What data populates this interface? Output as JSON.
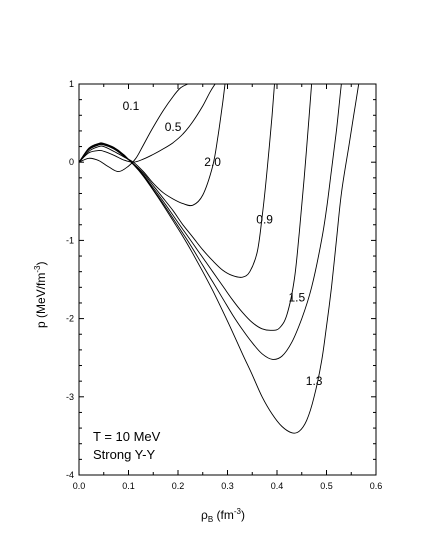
{
  "chart_data": {
    "type": "line",
    "xlabel_base": "ρ",
    "xlabel_sub": "B",
    "xlabel_unit": " (fm",
    "xlabel_exp": "-3",
    "xlabel_close": ")",
    "ylabel_main": "p (MeV/fm",
    "ylabel_exp": "-3",
    "ylabel_close": ")",
    "xlim": [
      0.0,
      0.6
    ],
    "ylim": [
      -4,
      1
    ],
    "x_ticks": [
      "0.0",
      "0.1",
      "0.2",
      "0.3",
      "0.4",
      "0.5",
      "0.6"
    ],
    "y_ticks": [
      "1",
      "0",
      "-1",
      "-2",
      "-3",
      "-4"
    ],
    "annotations": [
      "T = 10 MeV",
      "Strong Y-Y"
    ],
    "series": [
      {
        "name": "0.1",
        "x": [
          0,
          0.02,
          0.04,
          0.06,
          0.08,
          0.1,
          0.115,
          0.13,
          0.15,
          0.17,
          0.19,
          0.205,
          0.22
        ],
        "y": [
          0,
          0.05,
          0.02,
          -0.06,
          -0.12,
          -0.05,
          0.05,
          0.22,
          0.45,
          0.66,
          0.84,
          0.95,
          1.0
        ]
      },
      {
        "name": "0.5",
        "x": [
          0,
          0.02,
          0.04,
          0.05,
          0.07,
          0.09,
          0.11,
          0.13,
          0.15,
          0.17,
          0.19,
          0.21,
          0.23,
          0.25,
          0.265,
          0.275
        ],
        "y": [
          0,
          0.12,
          0.15,
          0.14,
          0.09,
          0.03,
          0.0,
          0.04,
          0.1,
          0.17,
          0.25,
          0.36,
          0.52,
          0.72,
          0.9,
          1.0
        ]
      },
      {
        "name": "2.0",
        "x": [
          0,
          0.02,
          0.04,
          0.05,
          0.07,
          0.09,
          0.11,
          0.13,
          0.15,
          0.17,
          0.19,
          0.21,
          0.23,
          0.25,
          0.27,
          0.28,
          0.29,
          0.295
        ],
        "y": [
          0,
          0.14,
          0.2,
          0.2,
          0.14,
          0.07,
          0.0,
          -0.12,
          -0.27,
          -0.39,
          -0.47,
          -0.53,
          -0.55,
          -0.42,
          -0.05,
          0.3,
          0.75,
          1.0
        ]
      },
      {
        "name": "0.9",
        "x": [
          0,
          0.02,
          0.04,
          0.05,
          0.07,
          0.09,
          0.11,
          0.13,
          0.15,
          0.17,
          0.19,
          0.21,
          0.23,
          0.25,
          0.27,
          0.29,
          0.31,
          0.33,
          0.345,
          0.36,
          0.37,
          0.38,
          0.39,
          0.395
        ],
        "y": [
          0,
          0.16,
          0.22,
          0.22,
          0.17,
          0.08,
          -0.02,
          -0.14,
          -0.3,
          -0.46,
          -0.62,
          -0.8,
          -0.96,
          -1.12,
          -1.26,
          -1.38,
          -1.45,
          -1.47,
          -1.4,
          -1.15,
          -0.7,
          -0.1,
          0.6,
          1.0
        ]
      },
      {
        "name": "1.5",
        "x": [
          0,
          0.02,
          0.04,
          0.05,
          0.07,
          0.09,
          0.11,
          0.13,
          0.15,
          0.17,
          0.19,
          0.21,
          0.23,
          0.25,
          0.27,
          0.29,
          0.31,
          0.33,
          0.35,
          0.37,
          0.39,
          0.405,
          0.42,
          0.435,
          0.445,
          0.455,
          0.465,
          0.47
        ],
        "y": [
          0,
          0.17,
          0.23,
          0.23,
          0.18,
          0.09,
          -0.02,
          -0.16,
          -0.33,
          -0.5,
          -0.68,
          -0.86,
          -1.04,
          -1.22,
          -1.4,
          -1.58,
          -1.76,
          -1.92,
          -2.05,
          -2.13,
          -2.15,
          -2.12,
          -1.95,
          -1.5,
          -0.9,
          -0.2,
          0.6,
          1.0
        ]
      },
      {
        "name": "1.3",
        "x": [
          0,
          0.02,
          0.04,
          0.05,
          0.07,
          0.09,
          0.11,
          0.13,
          0.15,
          0.17,
          0.19,
          0.21,
          0.23,
          0.25,
          0.27,
          0.29,
          0.31,
          0.33,
          0.35,
          0.37,
          0.39,
          0.41,
          0.43,
          0.445,
          0.46,
          0.475,
          0.49,
          0.5,
          0.51,
          0.52,
          0.53,
          0.545,
          0.555,
          0.565
        ],
        "y": [
          0,
          0.18,
          0.24,
          0.24,
          0.19,
          0.1,
          -0.03,
          -0.18,
          -0.36,
          -0.55,
          -0.75,
          -0.95,
          -1.17,
          -1.4,
          -1.64,
          -1.9,
          -2.17,
          -2.45,
          -2.72,
          -3.0,
          -3.22,
          -3.38,
          -3.46,
          -3.44,
          -3.3,
          -3.0,
          -2.55,
          -2.1,
          -1.6,
          -1.0,
          -0.4,
          0.2,
          0.6,
          1.0
        ]
      },
      {
        "name": "",
        "x": [
          0,
          0.02,
          0.04,
          0.05,
          0.07,
          0.09,
          0.11,
          0.13,
          0.15,
          0.17,
          0.19,
          0.21,
          0.23,
          0.25,
          0.27,
          0.29,
          0.31,
          0.33,
          0.35,
          0.37,
          0.39,
          0.41,
          0.43,
          0.45,
          0.47,
          0.49,
          0.5,
          0.51,
          0.52,
          0.525,
          0.53
        ],
        "y": [
          0,
          0.17,
          0.23,
          0.23,
          0.18,
          0.09,
          -0.03,
          -0.17,
          -0.35,
          -0.53,
          -0.72,
          -0.91,
          -1.11,
          -1.32,
          -1.53,
          -1.74,
          -1.95,
          -2.14,
          -2.31,
          -2.45,
          -2.52,
          -2.48,
          -2.3,
          -2.0,
          -1.6,
          -1.0,
          -0.6,
          -0.1,
          0.4,
          0.7,
          1.0
        ]
      }
    ],
    "label_positions": [
      {
        "text": "0.1",
        "x": 0.105,
        "y": 0.72
      },
      {
        "text": "0.5",
        "x": 0.19,
        "y": 0.45
      },
      {
        "text": "2.0",
        "x": 0.27,
        "y": 0.0
      },
      {
        "text": "0.9",
        "x": 0.375,
        "y": -0.73
      },
      {
        "text": "1.5",
        "x": 0.44,
        "y": -1.73
      },
      {
        "text": "1.3",
        "x": 0.475,
        "y": -2.8
      }
    ]
  }
}
